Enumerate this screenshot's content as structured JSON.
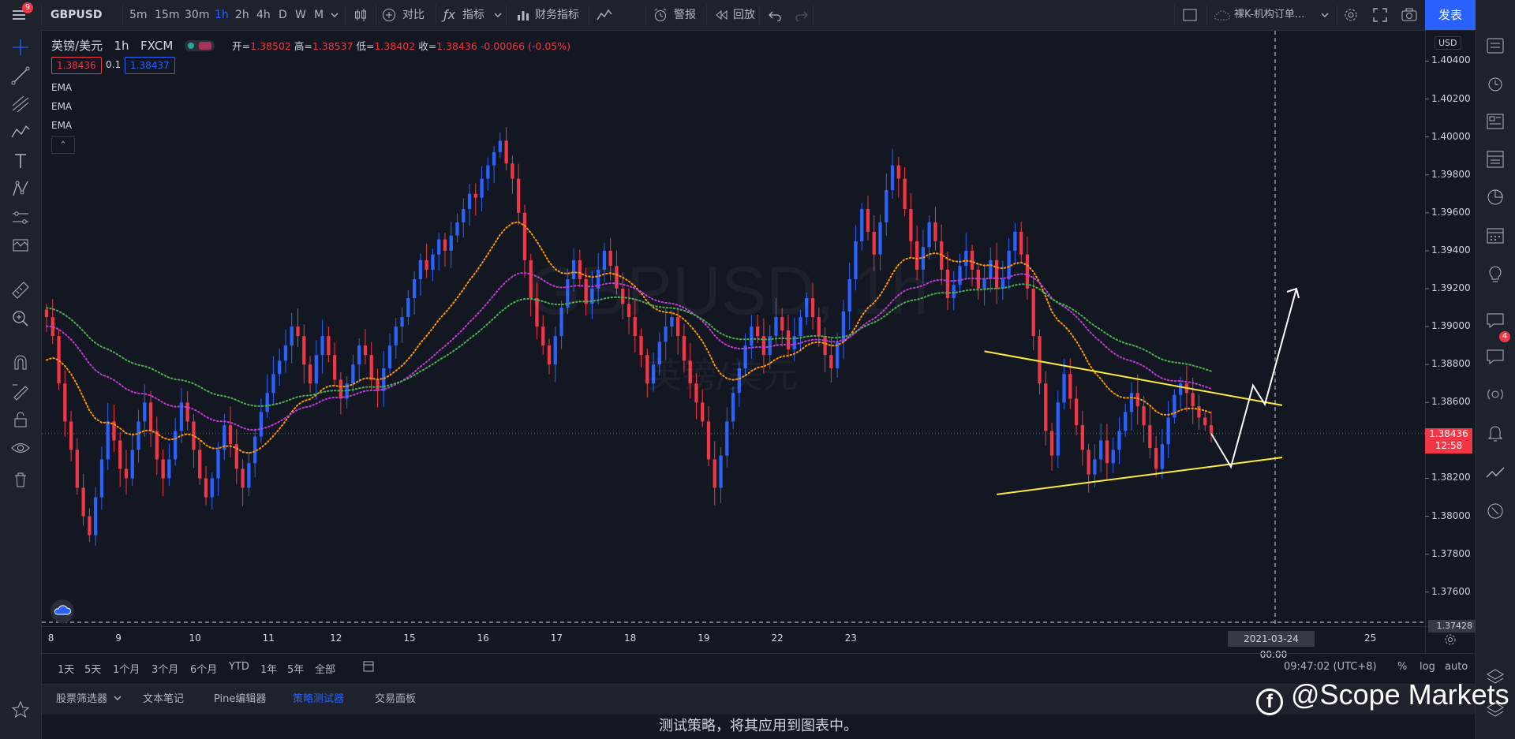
{
  "topbar": {
    "menu_badge": "9",
    "symbol": "GBPUSD",
    "timeframes": [
      {
        "label": "5m",
        "active": false
      },
      {
        "label": "15m",
        "active": false
      },
      {
        "label": "30m",
        "active": false
      },
      {
        "label": "1h",
        "active": true
      },
      {
        "label": "2h",
        "active": false
      },
      {
        "label": "4h",
        "active": false
      },
      {
        "label": "D",
        "active": false
      },
      {
        "label": "W",
        "active": false
      },
      {
        "label": "M",
        "active": false
      }
    ],
    "compare_label": "对比",
    "indicators_label": "指标",
    "financials_label": "财务指标",
    "templates_label": "模板",
    "alert_label": "警报",
    "replay_label": "回放",
    "layout_name": "裸K-机构订单...",
    "publish_label": "发表"
  },
  "legend": {
    "symbol_name": "英镑/美元",
    "interval": "1h",
    "exchange": "FXCM",
    "open_label": "开=",
    "open": "1.38502",
    "high_label": "高=",
    "high": "1.38537",
    "low_label": "低=",
    "low": "1.38402",
    "close_label": "收=",
    "close": "1.38436",
    "change": "-0.00066 (-0.05%)",
    "bid": "1.38436",
    "spread": "0.1",
    "ask": "1.38437",
    "indicators": [
      "EMA",
      "EMA",
      "EMA"
    ]
  },
  "watermark_chart": {
    "line1": "GBPUSD, 1h",
    "line2": "英镑/美元"
  },
  "price_axis": {
    "currency": "USD",
    "ticks": [
      "1.40400",
      "1.40200",
      "1.40000",
      "1.39800",
      "1.39600",
      "1.39400",
      "1.39200",
      "1.39000",
      "1.38800",
      "1.38600",
      "1.38200",
      "1.38000",
      "1.37800",
      "1.37600"
    ],
    "current_price": "1.38436",
    "countdown": "12:58",
    "crosshair_price": "1.37428"
  },
  "time_axis": {
    "ticks": [
      "8",
      "9",
      "10",
      "11",
      "12",
      "15",
      "16",
      "17",
      "18",
      "19",
      "22",
      "23",
      "25"
    ],
    "crosshair_date": "2021-03-24",
    "crosshair_time": "00:00"
  },
  "range_bar": {
    "ranges": [
      "1天",
      "5天",
      "1个月",
      "3个月",
      "6个月",
      "YTD",
      "1年",
      "5年",
      "全部"
    ],
    "clock": "09:47:02 (UTC+8)",
    "percent": "%",
    "log": "log",
    "auto": "auto"
  },
  "bottom_tabs": [
    {
      "label": "股票筛选器",
      "active": false
    },
    {
      "label": "文本笔记",
      "active": false
    },
    {
      "label": "Pine编辑器",
      "active": false
    },
    {
      "label": "策略测试器",
      "active": true
    },
    {
      "label": "交易面板",
      "active": false
    }
  ],
  "panel_message": "测试策略，将其应用到图表中。",
  "watermark_brand": "@Scope Markets",
  "right_sidebar": {
    "notifications_badge": "4"
  },
  "colors": {
    "bull": "#2962ff",
    "bear": "#f23645",
    "ema_fast": "#ff9800",
    "ema_mid": "#c33ad6",
    "ema_slow": "#4caf50",
    "trendline": "#ffeb3b",
    "accent": "#2962ff"
  },
  "chart_data": {
    "type": "candlestick",
    "symbol": "GBPUSD",
    "interval": "1h",
    "ylim": [
      1.3742,
      1.4056
    ],
    "x_ticks": [
      "8",
      "9",
      "10",
      "11",
      "12",
      "15",
      "16",
      "17",
      "18",
      "19",
      "22",
      "23",
      "25"
    ],
    "current_price": 1.38436,
    "closes": [
      1.3905,
      1.3895,
      1.387,
      1.385,
      1.3835,
      1.3815,
      1.38,
      1.379,
      1.381,
      1.383,
      1.385,
      1.384,
      1.3825,
      1.382,
      1.3835,
      1.385,
      1.386,
      1.3845,
      1.383,
      1.382,
      1.383,
      1.3845,
      1.386,
      1.385,
      1.3835,
      1.382,
      1.381,
      1.382,
      1.3835,
      1.3848,
      1.3838,
      1.3825,
      1.3815,
      1.3828,
      1.3842,
      1.3855,
      1.3865,
      1.3875,
      1.3882,
      1.389,
      1.39,
      1.3895,
      1.388,
      1.387,
      1.3885,
      1.3895,
      1.3885,
      1.3872,
      1.3862,
      1.387,
      1.388,
      1.389,
      1.3885,
      1.3872,
      1.3866,
      1.3878,
      1.389,
      1.39,
      1.3905,
      1.3915,
      1.3925,
      1.3935,
      1.393,
      1.3938,
      1.3946,
      1.394,
      1.3948,
      1.3955,
      1.3962,
      1.397,
      1.3968,
      1.3978,
      1.3985,
      1.3992,
      1.3998,
      1.3986,
      1.3978,
      1.396,
      1.3935,
      1.3915,
      1.39,
      1.389,
      1.388,
      1.3895,
      1.391,
      1.3925,
      1.3935,
      1.3925,
      1.3912,
      1.392,
      1.393,
      1.394,
      1.3932,
      1.392,
      1.3912,
      1.3905,
      1.3895,
      1.3885,
      1.387,
      1.388,
      1.3892,
      1.39,
      1.3905,
      1.3895,
      1.3882,
      1.387,
      1.386,
      1.385,
      1.383,
      1.3815,
      1.3832,
      1.385,
      1.3865,
      1.3878,
      1.389,
      1.39,
      1.3895,
      1.3885,
      1.3895,
      1.3905,
      1.3898,
      1.3888,
      1.3895,
      1.3905,
      1.3915,
      1.3905,
      1.3895,
      1.3885,
      1.3878,
      1.3892,
      1.3908,
      1.3925,
      1.3945,
      1.3962,
      1.395,
      1.3938,
      1.3955,
      1.3972,
      1.3985,
      1.3978,
      1.3962,
      1.3945,
      1.393,
      1.3942,
      1.3955,
      1.3945,
      1.393,
      1.3915,
      1.3922,
      1.3932,
      1.394,
      1.393,
      1.392,
      1.3925,
      1.3935,
      1.392,
      1.3925,
      1.394,
      1.395,
      1.3938,
      1.392,
      1.3895,
      1.387,
      1.3845,
      1.3832,
      1.386,
      1.3875,
      1.3862,
      1.3848,
      1.3835,
      1.3822,
      1.383,
      1.384,
      1.3828,
      1.3835,
      1.3845,
      1.3855,
      1.3865,
      1.3858,
      1.3848,
      1.3836,
      1.3825,
      1.3838,
      1.3852,
      1.3864,
      1.387,
      1.3865,
      1.3858,
      1.3852,
      1.3848,
      1.38436
    ]
  }
}
